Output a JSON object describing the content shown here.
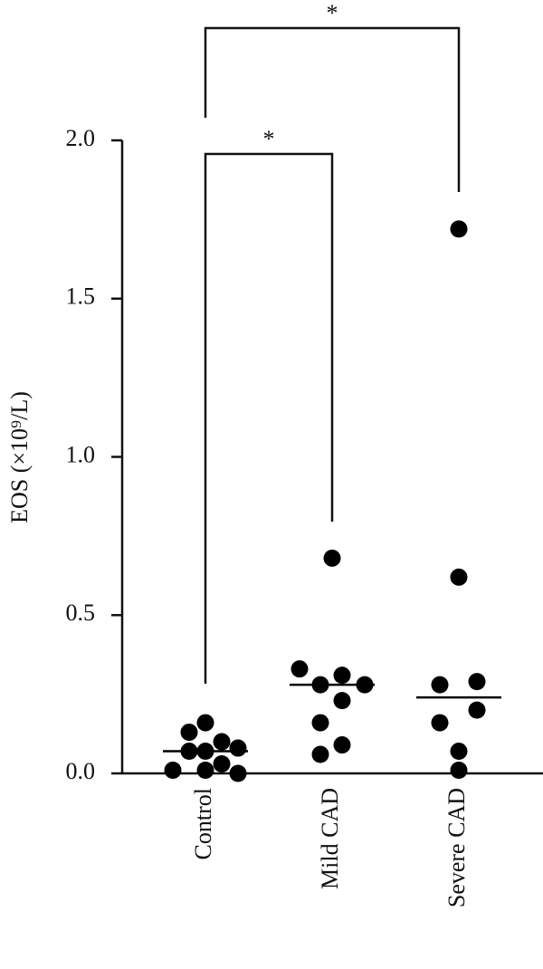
{
  "chart_data": {
    "type": "dot",
    "y_label": "EOS (×10⁹/L)",
    "categories": [
      "Control",
      "Mild CAD",
      "Severe CAD"
    ],
    "values": [
      [
        0.01,
        0.07,
        0.13,
        0.16,
        0.01,
        0.07,
        0.1,
        0.03,
        0.08,
        0.0
      ],
      [
        0.68,
        0.33,
        0.28,
        0.16,
        0.06,
        0.31,
        0.23,
        0.09,
        0.28
      ],
      [
        1.72,
        0.62,
        0.28,
        0.29,
        0.16,
        0.2,
        0.07,
        0.01
      ]
    ],
    "medians": [
      0.07,
      0.28,
      0.24
    ],
    "color": "#000000",
    "ylim": [
      0,
      2
    ],
    "yticks": [
      {
        "value": 0,
        "label": "0.0"
      },
      0.5,
      {
        "value": 1,
        "label": "1.0"
      },
      1.5,
      {
        "value": 2,
        "label": "2.0"
      }
    ],
    "annotations": [
      "*",
      "*"
    ]
  }
}
